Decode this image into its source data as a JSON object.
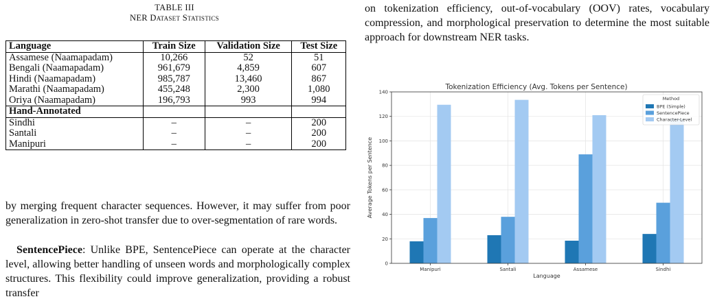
{
  "table": {
    "caption_line1": "TABLE III",
    "caption_line2": "NER Dataset Statistics",
    "headers": [
      "Language",
      "Train Size",
      "Validation Size",
      "Test Size"
    ],
    "rows": [
      [
        "Assamese (Naamapadam)",
        "10,266",
        "52",
        "51"
      ],
      [
        "Bengali (Naamapadam)",
        "961,679",
        "4,859",
        "607"
      ],
      [
        "Hindi (Naamapadam)",
        "985,787",
        "13,460",
        "867"
      ],
      [
        "Marathi (Naamapadam)",
        "455,248",
        "2,300",
        "1,080"
      ],
      [
        "Oriya (Naamapadam)",
        "196,793",
        "993",
        "994"
      ]
    ],
    "section_label": "Hand-Annotated",
    "hand_rows": [
      [
        "Sindhi",
        "–",
        "–",
        "200"
      ],
      [
        "Santali",
        "–",
        "–",
        "200"
      ],
      [
        "Manipuri",
        "–",
        "–",
        "200"
      ]
    ]
  },
  "left_text": {
    "para1": "by merging frequent character sequences. However, it may suffer from poor generalization in zero-shot transfer due to over-segmentation of rare words.",
    "sp_term": "SentencePiece",
    "para2_rest": ": Unlike BPE, SentencePiece can operate at the character level, allowing better handling of unseen words and morphologically complex structures. This flexibility could improve generalization, providing a robust transfer"
  },
  "right_text": {
    "para": "on tokenization efficiency, out-of-vocabulary (OOV) rates, vocabulary compression, and morphological preservation to determine the most suitable approach for downstream NER tasks."
  },
  "chart_data": {
    "type": "bar",
    "title": "Tokenization Efficiency (Avg. Tokens per Sentence)",
    "xlabel": "Language",
    "ylabel": "Average Tokens per Sentence",
    "categories": [
      "Manipuri",
      "Santali",
      "Assamese",
      "Sindhi"
    ],
    "ylim": [
      0,
      140
    ],
    "yticks": [
      0,
      20,
      40,
      60,
      80,
      100,
      120,
      140
    ],
    "grid": true,
    "legend": {
      "title": "Method",
      "position": "top-right"
    },
    "series": [
      {
        "name": "BPE (Simple)",
        "values": [
          18,
          23,
          18.5,
          24
        ],
        "color": "#1f77b4"
      },
      {
        "name": "SentencePiece",
        "values": [
          37,
          38,
          89,
          49.5
        ],
        "color": "#5aa0dc"
      },
      {
        "name": "Character-Level",
        "values": [
          129.5,
          133.5,
          121,
          118
        ],
        "color": "#a3caf2"
      }
    ]
  }
}
